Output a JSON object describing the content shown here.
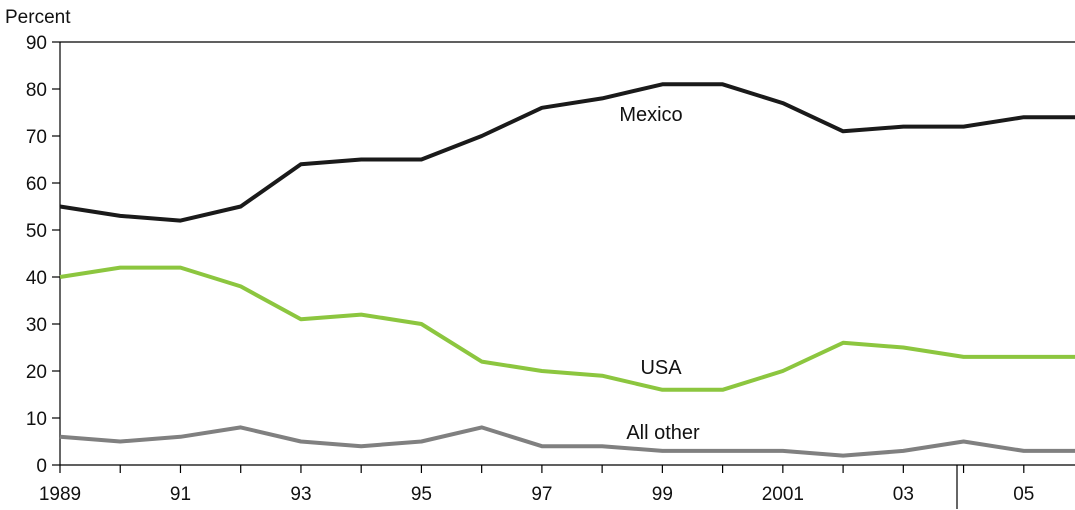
{
  "chart_data": {
    "type": "line",
    "ylabel": "Percent",
    "ylim": [
      0,
      90
    ],
    "yticks": [
      "0",
      "10",
      "20",
      "30",
      "40",
      "50",
      "60",
      "70",
      "80",
      "90"
    ],
    "x": [
      1989,
      1990,
      1991,
      1992,
      1993,
      1994,
      1995,
      1996,
      1997,
      1998,
      1999,
      2000,
      2001,
      2002,
      2003,
      2004,
      2005,
      2006
    ],
    "xtick_labels": [
      {
        "year": 1989,
        "label": "1989"
      },
      {
        "year": 1991,
        "label": "91"
      },
      {
        "year": 1993,
        "label": "93"
      },
      {
        "year": 1995,
        "label": "95"
      },
      {
        "year": 1997,
        "label": "97"
      },
      {
        "year": 1999,
        "label": "99"
      },
      {
        "year": 2001,
        "label": "2001"
      },
      {
        "year": 2003,
        "label": "03"
      },
      {
        "year": 2005,
        "label": "05"
      }
    ],
    "series": [
      {
        "name": "Mexico",
        "color": "#1a1a1a",
        "values": [
          55,
          53,
          52,
          55,
          64,
          65,
          65,
          70,
          76,
          78,
          81,
          81,
          77,
          71,
          72,
          72,
          74,
          74
        ]
      },
      {
        "name": "USA",
        "color": "#8cc63f",
        "values": [
          40,
          42,
          42,
          38,
          31,
          32,
          30,
          22,
          20,
          19,
          16,
          16,
          20,
          26,
          25,
          23,
          23,
          23
        ]
      },
      {
        "name": "All other",
        "color": "#808080",
        "values": [
          6,
          5,
          6,
          8,
          5,
          4,
          5,
          8,
          4,
          4,
          3,
          3,
          3,
          2,
          3,
          5,
          3,
          3
        ]
      }
    ],
    "grid": false,
    "legend": "none"
  }
}
